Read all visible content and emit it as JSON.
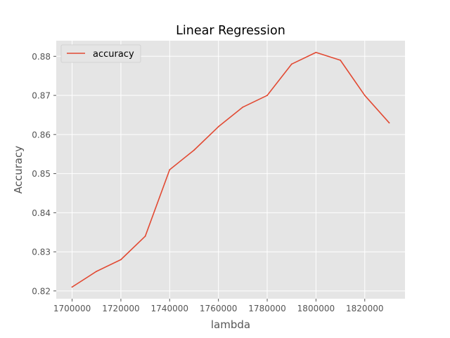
{
  "chart_data": {
    "type": "line",
    "title": "Linear Regression",
    "xlabel": "lambda",
    "ylabel": "Accuracy",
    "x": [
      1700000,
      1710000,
      1720000,
      1730000,
      1740000,
      1750000,
      1760000,
      1770000,
      1780000,
      1790000,
      1800000,
      1810000,
      1820000,
      1830000
    ],
    "series": [
      {
        "name": "accuracy",
        "color": "#E24A33",
        "values": [
          0.821,
          0.825,
          0.828,
          0.834,
          0.851,
          0.856,
          0.862,
          0.867,
          0.87,
          0.878,
          0.881,
          0.879,
          0.87,
          0.863
        ]
      }
    ],
    "xticks": [
      1700000,
      1720000,
      1740000,
      1760000,
      1780000,
      1800000,
      1820000
    ],
    "xtick_labels": [
      "1700000",
      "1720000",
      "1740000",
      "1760000",
      "1780000",
      "1800000",
      "1820000"
    ],
    "yticks": [
      0.82,
      0.83,
      0.84,
      0.85,
      0.86,
      0.87,
      0.88
    ],
    "ytick_labels": [
      "0.82",
      "0.83",
      "0.84",
      "0.85",
      "0.86",
      "0.87",
      "0.88"
    ],
    "xlim": [
      1693500,
      1836500
    ],
    "ylim": [
      0.818,
      0.884
    ],
    "grid": true,
    "legend_position": "top-left",
    "style": "ggplot",
    "colors": {
      "plot_background": "#E5E5E5",
      "grid": "#FFFFFF",
      "text": "#555555",
      "title": "#000000"
    }
  }
}
